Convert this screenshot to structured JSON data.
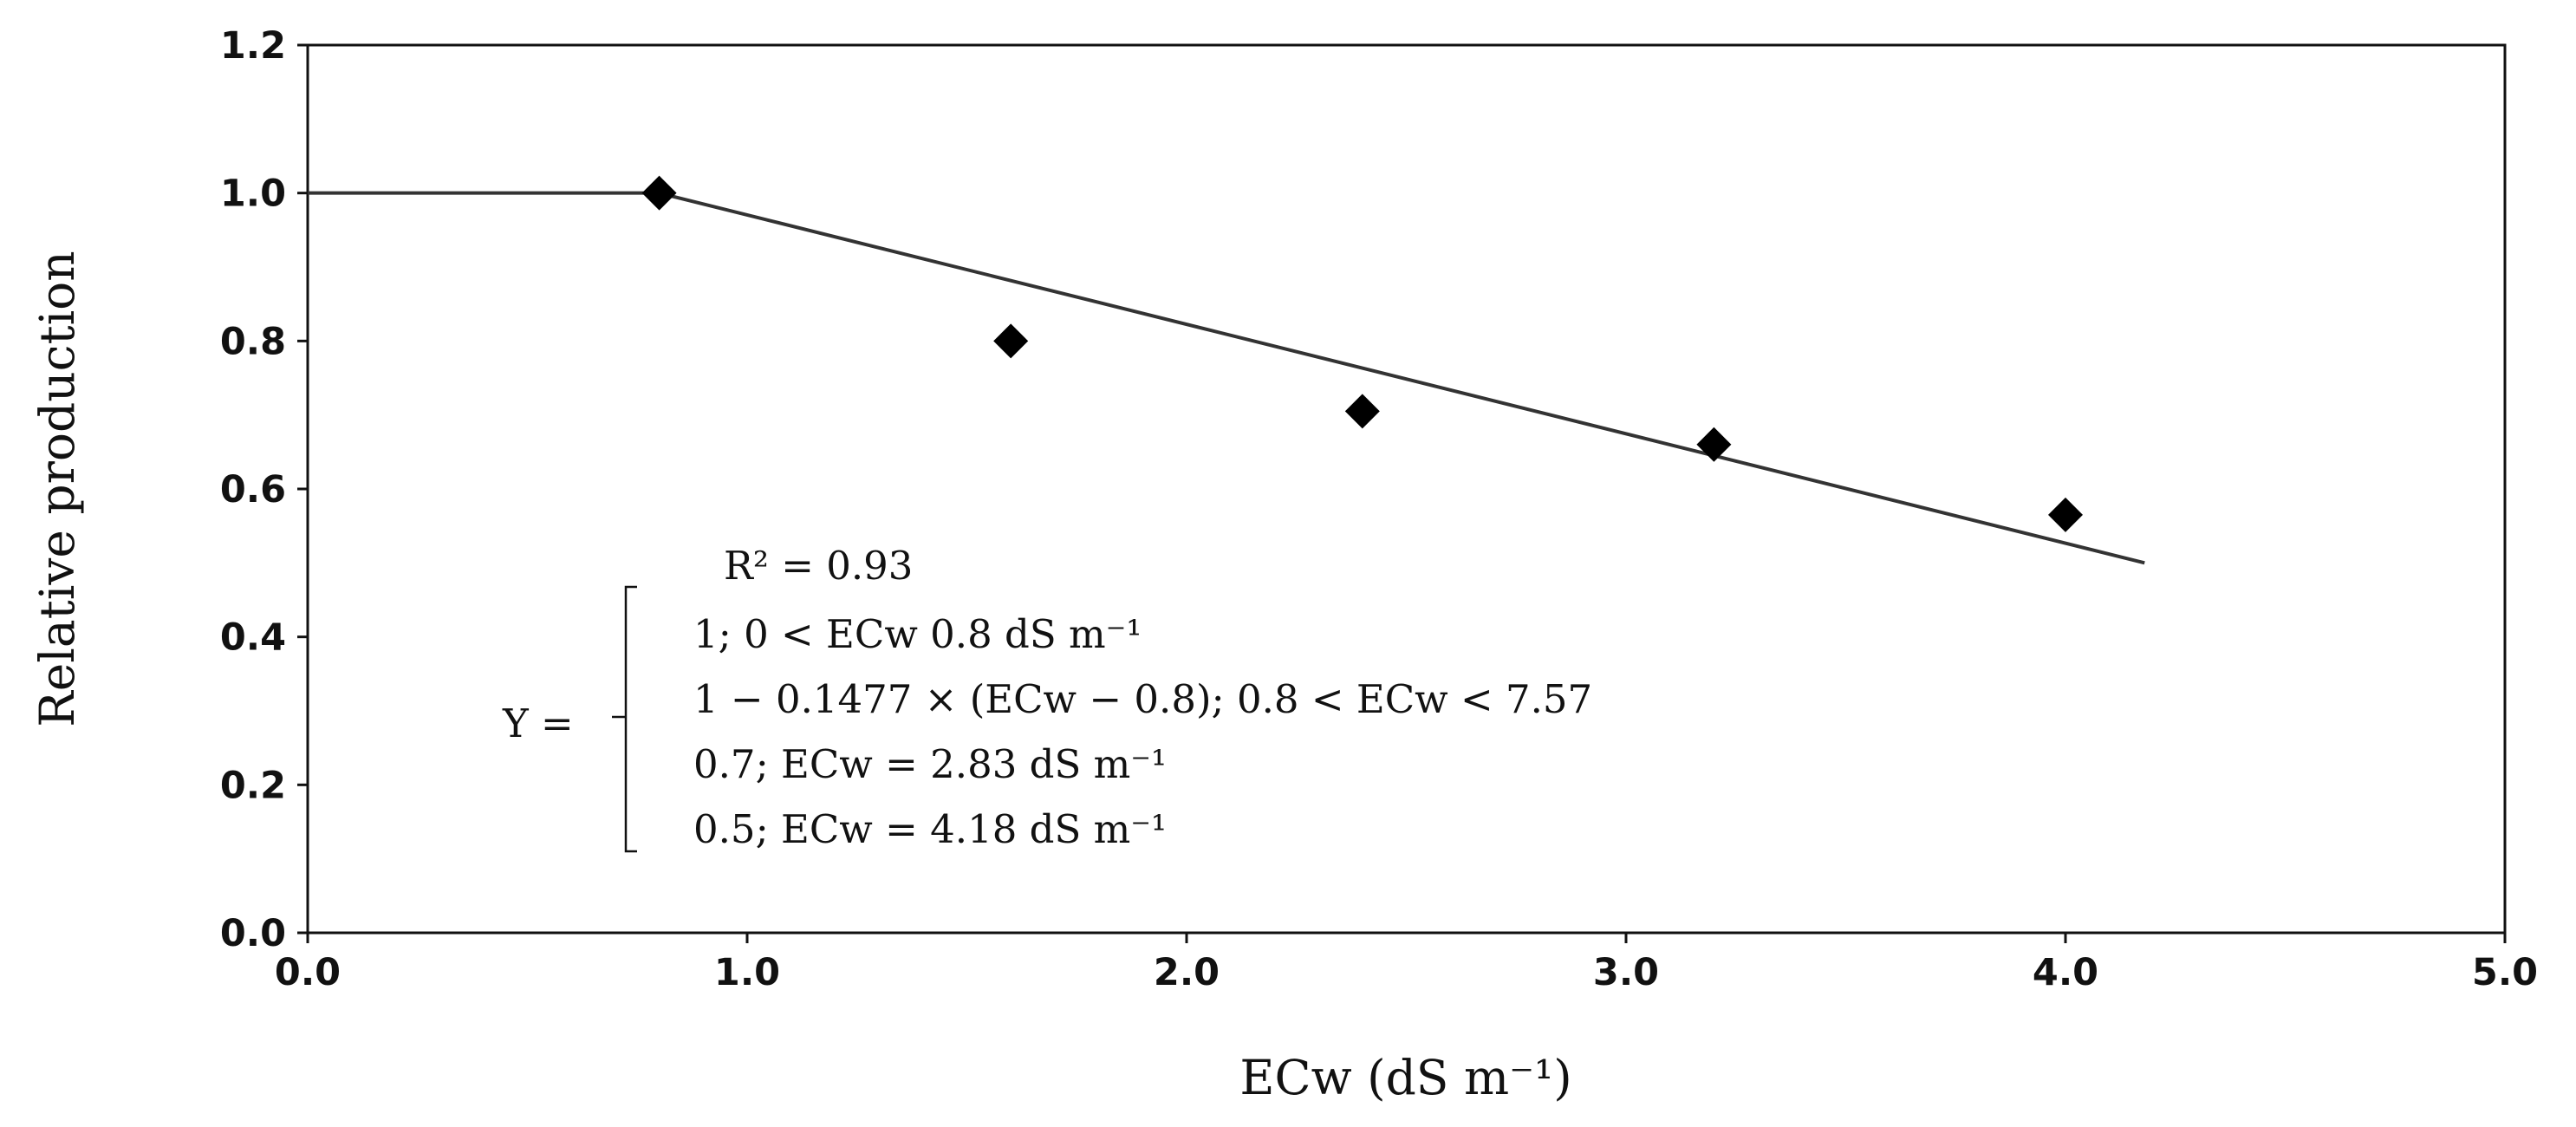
{
  "chart_data": {
    "type": "scatter",
    "title": "",
    "xlabel": "ECw (dS m⁻¹)",
    "ylabel": "Relative production",
    "xlim": [
      0,
      5
    ],
    "ylim": [
      0,
      1.2
    ],
    "x_ticks": [
      "0.0",
      "1.0",
      "2.0",
      "3.0",
      "4.0",
      "5.0"
    ],
    "y_ticks": [
      "0.0",
      "0.2",
      "0.4",
      "0.6",
      "0.8",
      "1.0",
      "1.2"
    ],
    "grid": false,
    "legend": "none",
    "series": [
      {
        "type": "scatter",
        "marker": "diamond",
        "color": "#000000",
        "x": [
          0.8,
          1.6,
          2.4,
          3.2,
          4.0
        ],
        "y": [
          1.0,
          0.8,
          0.705,
          0.66,
          0.565
        ]
      },
      {
        "type": "line",
        "color": "#333333",
        "x": [
          0,
          0.8,
          4.18
        ],
        "y": [
          1.0,
          1.0,
          0.5
        ]
      }
    ],
    "annotation": {
      "r2": "R² = 0.93",
      "lhs": "Y =",
      "lines": [
        "1; 0 < ECw 0.8 dS m⁻¹",
        "1 − 0.1477 × (ECw − 0.8); 0.8 < ECw < 7.57",
        "0.7; ECw = 2.83 dS m⁻¹",
        "0.5; ECw = 4.18 dS m⁻¹"
      ]
    }
  }
}
